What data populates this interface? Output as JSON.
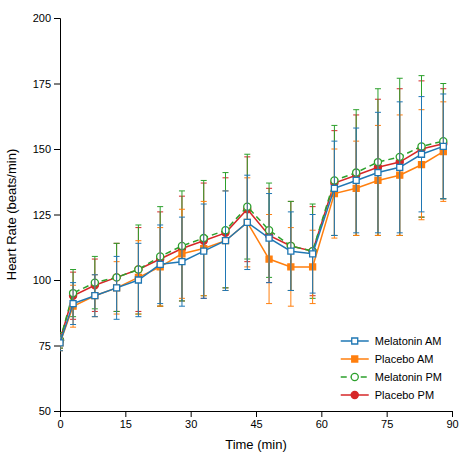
{
  "chart_data": {
    "type": "line",
    "x_label": "Time (min)",
    "y_label": "Heart Rate (beats/min)",
    "x": [
      0,
      3,
      8,
      13,
      18,
      23,
      28,
      33,
      38,
      43,
      48,
      53,
      58,
      63,
      68,
      73,
      78,
      83,
      88
    ],
    "series": [
      {
        "name": "Melatonin AM",
        "marker": "square-open",
        "line_style": "solid",
        "values": [
          76,
          91,
          94,
          97,
          100,
          106,
          107,
          111,
          115,
          122,
          116,
          111,
          110,
          135,
          138,
          141,
          143,
          148,
          151
        ],
        "errors": [
          3,
          8,
          8,
          12,
          14,
          15,
          17,
          18,
          19,
          18,
          17,
          15,
          15,
          18,
          20,
          23,
          25,
          22,
          20
        ]
      },
      {
        "name": "Placebo AM",
        "marker": "square",
        "line_style": "solid",
        "values": [
          76,
          90,
          94,
          97,
          101,
          105,
          110,
          112,
          115,
          122,
          108,
          105,
          105,
          133,
          135,
          138,
          140,
          144,
          149
        ],
        "errors": [
          3,
          8,
          8,
          10,
          14,
          15,
          17,
          18,
          19,
          17,
          17,
          15,
          14,
          17,
          18,
          21,
          23,
          21,
          19
        ]
      },
      {
        "name": "Melatonin PM",
        "marker": "circle-open",
        "line_style": "dashed",
        "values": [
          77,
          95,
          99,
          101,
          104,
          109,
          113,
          116,
          119,
          128,
          119,
          113,
          111,
          138,
          141,
          145,
          147,
          151,
          153
        ],
        "errors": [
          3,
          9,
          10,
          13,
          17,
          19,
          21,
          22,
          22,
          20,
          18,
          17,
          18,
          21,
          24,
          28,
          30,
          27,
          22
        ]
      },
      {
        "name": "Placebo PM",
        "marker": "circle",
        "line_style": "solid",
        "values": [
          77,
          94,
          98,
          101,
          104,
          108,
          112,
          115,
          118,
          127,
          117,
          113,
          111,
          137,
          140,
          143,
          145,
          150,
          152
        ],
        "errors": [
          3,
          9,
          10,
          13,
          16,
          18,
          20,
          22,
          21,
          20,
          18,
          17,
          17,
          20,
          23,
          26,
          28,
          26,
          21
        ]
      }
    ],
    "xlim": [
      0,
      90
    ],
    "xticks": [
      0,
      15,
      30,
      45,
      60,
      75,
      90
    ],
    "ylim": [
      50,
      200
    ],
    "yticks": [
      50,
      75,
      100,
      125,
      150,
      175,
      200
    ],
    "grid": false,
    "legend": "lower right"
  }
}
